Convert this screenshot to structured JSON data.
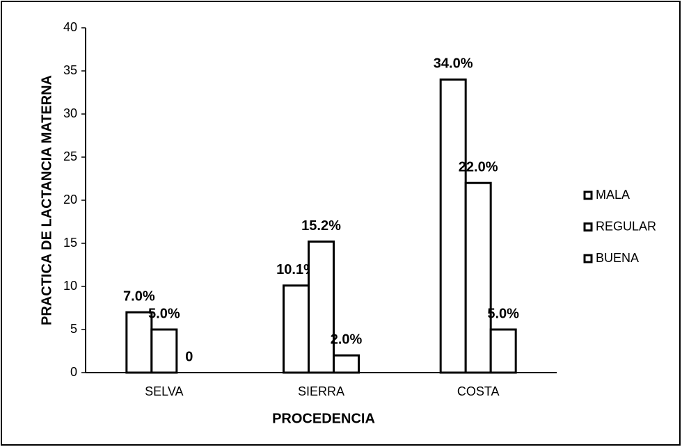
{
  "chart_data": {
    "type": "bar",
    "ylabel": "PRACTICA DE LACTANCIA MATERNA",
    "xlabel": "PROCEDENCIA",
    "categories": [
      "SELVA",
      "SIERRA",
      "COSTA"
    ],
    "series": [
      {
        "name": "MALA",
        "color": "#ffffff",
        "values": [
          7,
          10.1,
          34
        ],
        "value_labels": [
          "7.0%",
          "10.1%",
          "34.0%"
        ]
      },
      {
        "name": "REGULAR",
        "color": "#ffffff",
        "values": [
          5,
          15.2,
          22
        ],
        "value_labels": [
          "5.0%",
          "15.2%",
          "22.0%"
        ]
      },
      {
        "name": "BUENA",
        "color": "#ffffff",
        "values": [
          0,
          2,
          5
        ],
        "value_labels": [
          "0",
          "2.0%",
          "5.0%"
        ]
      }
    ],
    "ylim": [
      0,
      40
    ],
    "yticks": [
      0,
      5,
      10,
      15,
      20,
      25,
      30,
      35,
      40
    ],
    "grid": false,
    "legend": "right"
  }
}
